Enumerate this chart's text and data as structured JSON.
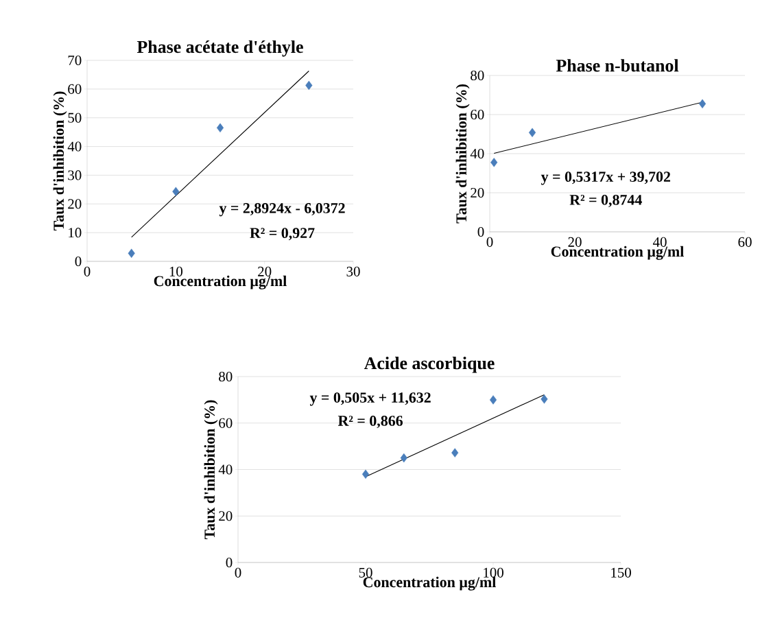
{
  "chart_data": [
    {
      "type": "scatter",
      "title": "Phase acétate d'éthyle",
      "xlabel": "Concentration µg/ml",
      "ylabel": "Taux d'inhibition (%)",
      "xlim": [
        0,
        30
      ],
      "xticks": [
        0,
        10,
        20,
        30
      ],
      "ylim": [
        0,
        70
      ],
      "yticks": [
        0,
        10,
        20,
        30,
        40,
        50,
        60,
        70
      ],
      "grid": "y",
      "marker": "diamond",
      "series": [
        {
          "color": "#4a7ebb",
          "x": [
            5,
            10,
            15,
            25
          ],
          "values": [
            2.8,
            24.3,
            46.5,
            61.3
          ]
        },
        {
          "type": "line",
          "color": "#000000",
          "marker": "none",
          "x": [
            5,
            25
          ],
          "values": [
            8.4,
            66.3
          ]
        }
      ],
      "annotations": [
        "y = 2,8924x - 6,0372",
        "R² = 0,927"
      ]
    },
    {
      "type": "scatter",
      "title": "Phase n-butanol",
      "xlabel": "Concentration µg/ml",
      "ylabel": "Taux d'inhibition (%)",
      "xlim": [
        0,
        60
      ],
      "xticks": [
        0,
        20,
        40,
        60
      ],
      "ylim": [
        0,
        80
      ],
      "yticks": [
        0,
        20,
        40,
        60,
        80
      ],
      "grid": "y",
      "marker": "diamond",
      "series": [
        {
          "color": "#4a7ebb",
          "x": [
            1,
            10,
            50
          ],
          "values": [
            35.5,
            50.8,
            65.5
          ]
        },
        {
          "type": "line",
          "color": "#000000",
          "marker": "none",
          "x": [
            1,
            50
          ],
          "values": [
            40.2,
            66.3
          ]
        }
      ],
      "annotations": [
        "y = 0,5317x + 39,702",
        "R² = 0,8744"
      ]
    },
    {
      "type": "scatter",
      "title": "Acide ascorbique",
      "xlabel": "Concentration µg/ml",
      "ylabel": "Taux d'inhibition (%)",
      "xlim": [
        0,
        150
      ],
      "xticks": [
        0,
        50,
        100,
        150
      ],
      "ylim": [
        0,
        80
      ],
      "yticks": [
        0,
        20,
        40,
        60,
        80
      ],
      "grid": "y",
      "marker": "diamond",
      "series": [
        {
          "color": "#4a7ebb",
          "x": [
            50,
            65,
            85,
            100,
            120
          ],
          "values": [
            38,
            45,
            47.2,
            70,
            70.3
          ]
        },
        {
          "type": "line",
          "color": "#000000",
          "marker": "none",
          "x": [
            50,
            120
          ],
          "values": [
            36.9,
            72.2
          ]
        }
      ],
      "annotations": [
        "y = 0,505x + 11,632",
        "R² = 0,866"
      ]
    }
  ]
}
